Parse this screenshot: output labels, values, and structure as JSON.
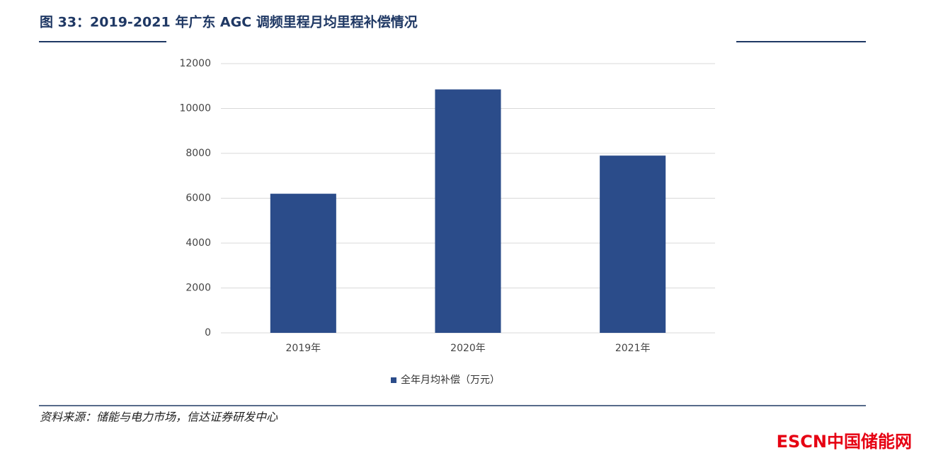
{
  "chart_data": {
    "type": "bar",
    "title": "图 33：2019-2021 年广东 AGC 调频里程月均里程补偿情况",
    "categories": [
      "2019年",
      "2020年",
      "2021年"
    ],
    "series": [
      {
        "name": "全年月均补偿（万元）",
        "color": "#2b4c8a",
        "values": [
          6200,
          10850,
          7900
        ]
      }
    ],
    "ylim": [
      0,
      12000
    ],
    "yticks": [
      0,
      2000,
      4000,
      6000,
      8000,
      10000,
      12000
    ],
    "grid": true,
    "legend": "bottom",
    "source": "资料来源：储能与电力市场，信达证券研发中心"
  },
  "watermark": {
    "brand": "ESCN",
    "name": "中国储能网"
  }
}
